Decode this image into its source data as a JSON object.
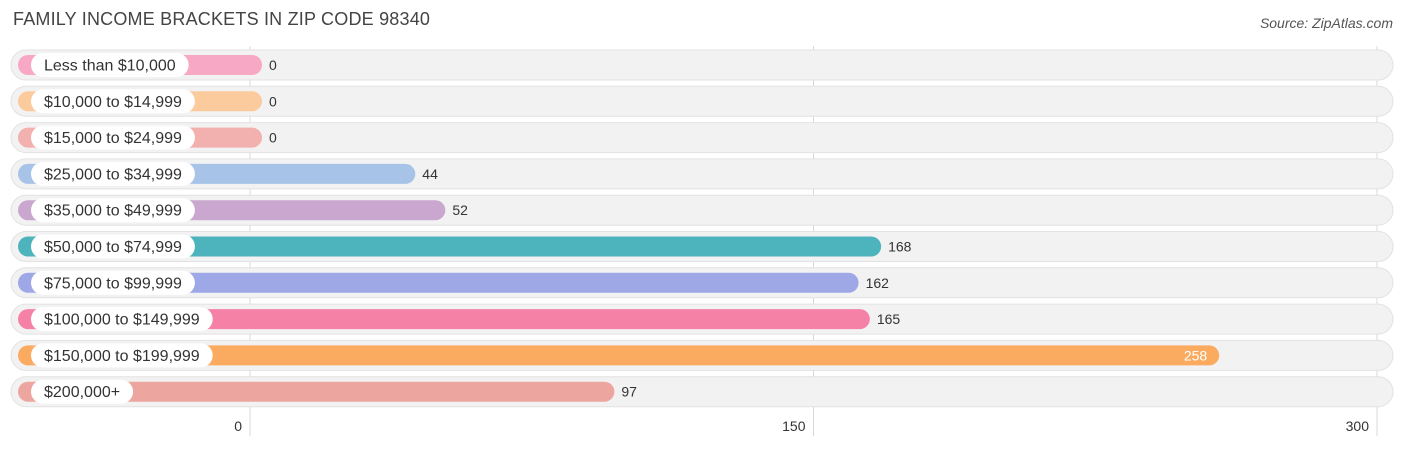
{
  "header": {
    "title": "FAMILY INCOME BRACKETS IN ZIP CODE 98340",
    "source": "Source: ZipAtlas.com"
  },
  "chart_data": {
    "type": "bar",
    "orientation": "horizontal",
    "title": "FAMILY INCOME BRACKETS IN ZIP CODE 98340",
    "xlabel": "",
    "ylabel": "",
    "xlim": [
      0,
      300
    ],
    "xticks": [
      0,
      150,
      300
    ],
    "grid": true,
    "categories": [
      "Less than $10,000",
      "$10,000 to $14,999",
      "$15,000 to $24,999",
      "$25,000 to $34,999",
      "$35,000 to $49,999",
      "$50,000 to $74,999",
      "$75,000 to $99,999",
      "$100,000 to $149,999",
      "$150,000 to $199,999",
      "$200,000+"
    ],
    "values": [
      0,
      0,
      0,
      44,
      52,
      168,
      162,
      165,
      258,
      97
    ],
    "colors": [
      "#f7a8c4",
      "#fbcb9e",
      "#f2b0ae",
      "#a7c4e8",
      "#c9a7cf",
      "#4db3bd",
      "#9ea8e6",
      "#f582a6",
      "#fbab5f",
      "#eda59f"
    ]
  }
}
